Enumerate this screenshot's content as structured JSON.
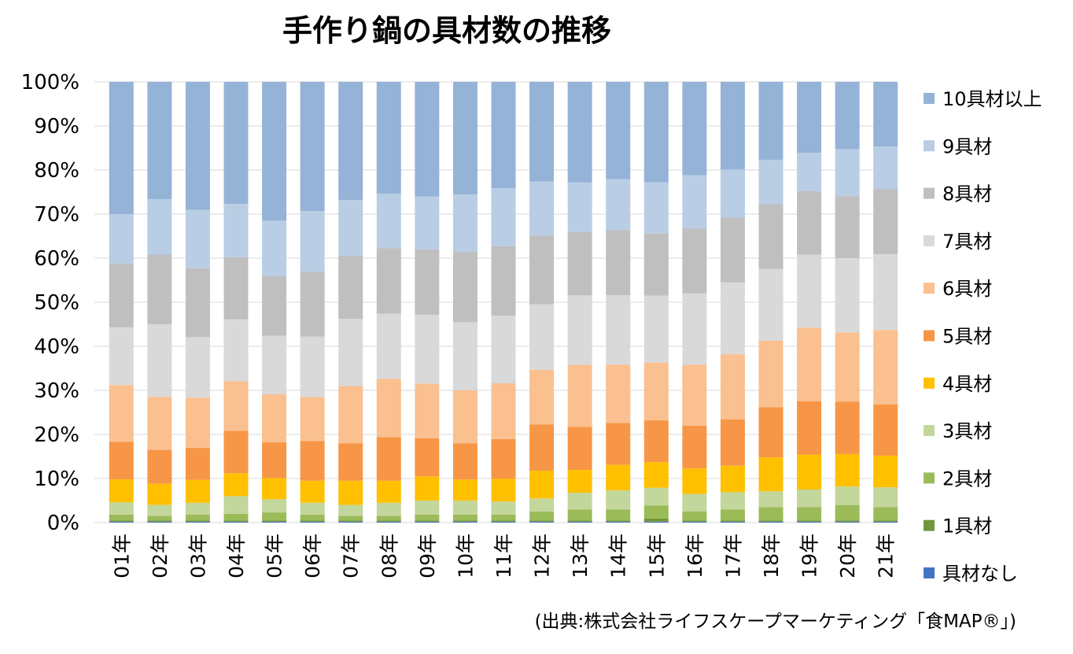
{
  "chart_data": {
    "type": "bar",
    "stacked": true,
    "normalized": true,
    "title": "手作り鍋の具材数の推移",
    "source": "(出典:株式会社ライフスケープマーケティング「食MAP®」)",
    "categories": [
      "01年",
      "02年",
      "03年",
      "04年",
      "05年",
      "06年",
      "07年",
      "08年",
      "09年",
      "10年",
      "11年",
      "12年",
      "13年",
      "14年",
      "15年",
      "16年",
      "17年",
      "18年",
      "19年",
      "20年",
      "21年"
    ],
    "yticks": [
      "0%",
      "10%",
      "20%",
      "30%",
      "40%",
      "50%",
      "60%",
      "70%",
      "80%",
      "90%",
      "100%"
    ],
    "ylim": [
      0,
      100
    ],
    "legend_position": "right",
    "series": [
      {
        "name": "具材なし",
        "color": "#4472C4",
        "values": [
          0.2,
          0.2,
          0.2,
          0.2,
          0.2,
          0.2,
          0.2,
          0.2,
          0.2,
          0.2,
          0.2,
          0.2,
          0.2,
          0.2,
          0.2,
          0.2,
          0.2,
          0.2,
          0.2,
          0.2,
          0.2
        ]
      },
      {
        "name": "1具材",
        "color": "#70963A",
        "values": [
          0.3,
          0.3,
          0.3,
          0.3,
          0.3,
          0.3,
          0.3,
          0.3,
          0.3,
          0.3,
          0.3,
          0.3,
          0.3,
          0.3,
          0.7,
          0.3,
          0.3,
          0.3,
          0.3,
          0.3,
          0.3
        ]
      },
      {
        "name": "2具材",
        "color": "#9BBB59",
        "values": [
          1.3,
          1.0,
          1.3,
          1.5,
          1.8,
          1.3,
          1.0,
          1.0,
          1.3,
          1.3,
          1.3,
          2.0,
          2.5,
          2.5,
          3.0,
          2.0,
          2.5,
          3.0,
          3.0,
          3.5,
          3.0
        ]
      },
      {
        "name": "3具材",
        "color": "#C3D69B",
        "values": [
          2.8,
          2.5,
          2.7,
          4.0,
          3.0,
          2.7,
          2.5,
          3.0,
          3.2,
          3.2,
          3.0,
          3.0,
          3.8,
          4.3,
          4.0,
          4.0,
          3.9,
          3.6,
          4.0,
          4.2,
          4.5
        ]
      },
      {
        "name": "4具材",
        "color": "#FFC000",
        "values": [
          5.2,
          4.8,
          5.2,
          5.2,
          4.8,
          5.0,
          5.5,
          5.0,
          5.5,
          4.8,
          5.2,
          6.3,
          5.2,
          5.8,
          5.8,
          5.8,
          6.0,
          7.7,
          7.9,
          7.4,
          7.2
        ]
      },
      {
        "name": "5具材",
        "color": "#F79646",
        "values": [
          8.5,
          7.7,
          7.3,
          9.6,
          8.1,
          9.0,
          8.5,
          9.9,
          8.7,
          8.2,
          9.0,
          10.5,
          9.8,
          9.5,
          9.5,
          9.7,
          10.5,
          11.4,
          12.1,
          11.9,
          11.6
        ]
      },
      {
        "name": "6具材",
        "color": "#FAC090",
        "values": [
          12.9,
          12.0,
          11.4,
          11.3,
          10.9,
          10.0,
          13.0,
          13.2,
          12.4,
          12.1,
          12.7,
          12.5,
          14.1,
          13.2,
          13.1,
          13.8,
          14.8,
          15.1,
          16.7,
          15.8,
          16.9
        ]
      },
      {
        "name": "7具材",
        "color": "#D9D9D9",
        "values": [
          13.1,
          16.5,
          13.8,
          14.0,
          13.3,
          13.7,
          15.2,
          14.8,
          15.7,
          15.5,
          15.4,
          14.9,
          15.8,
          15.8,
          15.2,
          16.2,
          16.3,
          16.3,
          16.6,
          16.9,
          17.2
        ]
      },
      {
        "name": "8具材",
        "color": "#BFBFBF",
        "values": [
          14.5,
          15.8,
          15.7,
          14.1,
          13.5,
          14.7,
          14.4,
          14.9,
          14.9,
          16.0,
          15.8,
          15.6,
          14.4,
          14.8,
          14.1,
          14.7,
          14.7,
          14.7,
          14.4,
          14.1,
          14.8
        ]
      },
      {
        "name": "9具材",
        "color": "#B9CDE5",
        "values": [
          11.2,
          12.6,
          13.3,
          12.1,
          12.6,
          13.8,
          12.6,
          12.3,
          12.0,
          13.1,
          13.2,
          12.3,
          11.3,
          11.5,
          11.6,
          12.1,
          10.9,
          10.1,
          8.7,
          10.7,
          9.6
        ]
      },
      {
        "name": "10具材以上",
        "color": "#95B3D7",
        "values": [
          30.0,
          26.6,
          29.1,
          27.7,
          31.5,
          29.3,
          26.8,
          25.4,
          26.1,
          25.6,
          24.2,
          22.7,
          22.9,
          22.1,
          22.8,
          21.2,
          19.9,
          17.7,
          16.1,
          15.3,
          14.7
        ]
      }
    ]
  }
}
